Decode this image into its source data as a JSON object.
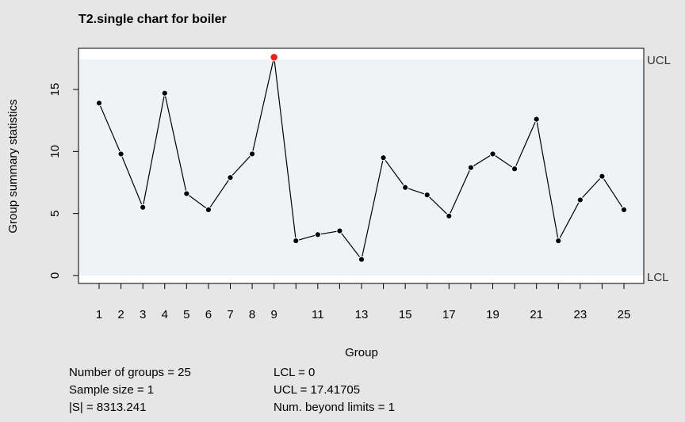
{
  "chart_data": {
    "type": "line",
    "title": "T2.single chart for boiler",
    "xlabel": "Group",
    "ylabel": "Group summary statistics",
    "x": [
      1,
      2,
      3,
      4,
      5,
      6,
      7,
      8,
      9,
      10,
      11,
      12,
      13,
      14,
      15,
      16,
      17,
      18,
      19,
      20,
      21,
      22,
      23,
      24,
      25
    ],
    "xtick_labels": [
      "1",
      "2",
      "3",
      "4",
      "5",
      "6",
      "7",
      "8",
      "9",
      "11",
      "13",
      "15",
      "17",
      "19",
      "21",
      "23",
      "25"
    ],
    "yticks": [
      0,
      5,
      10,
      15
    ],
    "xlim": [
      1,
      25
    ],
    "ylim": [
      0,
      17.5
    ],
    "series": [
      {
        "values": [
          13.9,
          9.8,
          5.5,
          14.7,
          6.6,
          5.3,
          7.9,
          9.8,
          17.6,
          2.8,
          3.3,
          3.6,
          1.3,
          9.5,
          7.1,
          6.5,
          4.8,
          8.7,
          9.8,
          8.6,
          12.6,
          2.8,
          6.1,
          8.0,
          5.3
        ],
        "color": "#000000"
      }
    ],
    "violations": [
      9
    ],
    "violation_color": "#e8261e",
    "limits": {
      "ucl": 17.41705,
      "lcl": 0,
      "ucl_label": "UCL",
      "lcl_label": "LCL"
    },
    "plot_background": "#eff3f6",
    "grid": false,
    "legend": "none"
  },
  "stats": {
    "groups": "Number of groups = 25",
    "sample_size": "Sample size = 1",
    "s_det": "|S| = 8313.241",
    "lcl": "LCL = 0",
    "ucl": "UCL = 17.41705",
    "beyond": "Num. beyond limits = 1"
  }
}
